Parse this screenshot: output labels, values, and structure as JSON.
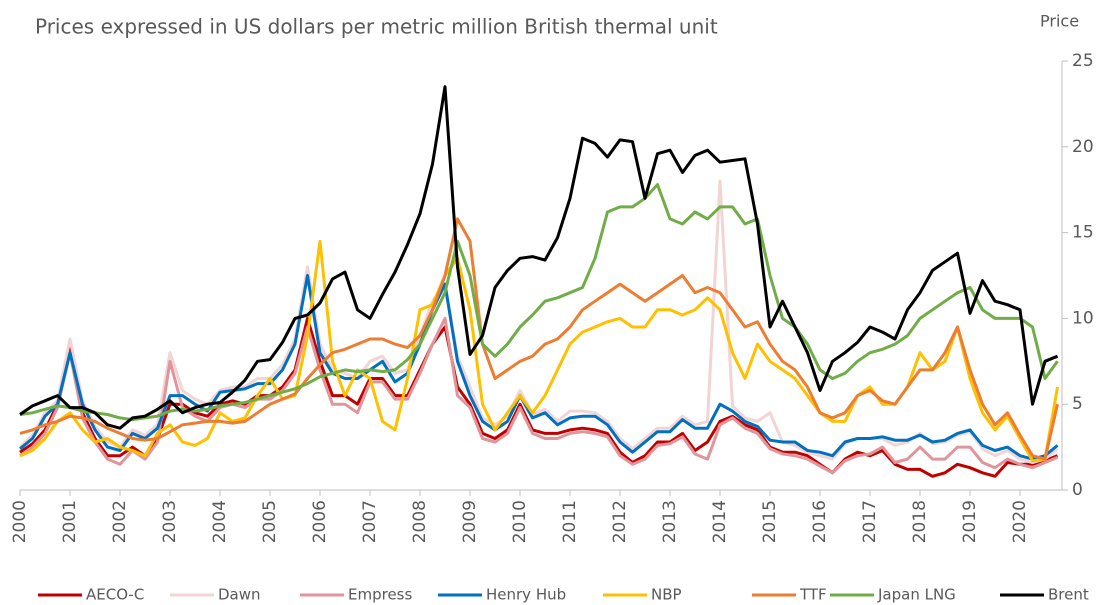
{
  "chart_data": {
    "type": "line",
    "title": "Prices expressed in US dollars per metric million British thermal unit",
    "y_axis_label": "Price",
    "xlim": [
      2000,
      2020.84
    ],
    "xticks": [
      2000,
      2001,
      2002,
      2003,
      2004,
      2005,
      2006,
      2007,
      2008,
      2009,
      2010,
      2011,
      2012,
      2013,
      2014,
      2015,
      2016,
      2017,
      2018,
      2019,
      2020
    ],
    "ylim": [
      0,
      25
    ],
    "yticks": [
      0,
      5,
      10,
      15,
      20,
      25
    ],
    "x": [
      2000,
      2000.25,
      2000.5,
      2000.75,
      2001,
      2001.25,
      2001.5,
      2001.75,
      2002,
      2002.25,
      2002.5,
      2002.75,
      2003,
      2003.25,
      2003.5,
      2003.75,
      2004,
      2004.25,
      2004.5,
      2004.75,
      2005,
      2005.25,
      2005.5,
      2005.75,
      2006,
      2006.25,
      2006.5,
      2006.75,
      2007,
      2007.25,
      2007.5,
      2007.75,
      2008,
      2008.25,
      2008.5,
      2008.75,
      2009,
      2009.25,
      2009.5,
      2009.75,
      2010,
      2010.25,
      2010.5,
      2010.75,
      2011,
      2011.25,
      2011.5,
      2011.75,
      2012,
      2012.25,
      2012.5,
      2012.75,
      2013,
      2013.25,
      2013.5,
      2013.75,
      2014,
      2014.25,
      2014.5,
      2014.75,
      2015,
      2015.25,
      2015.5,
      2015.75,
      2016,
      2016.25,
      2016.5,
      2016.75,
      2017,
      2017.25,
      2017.5,
      2017.75,
      2018,
      2018.25,
      2018.5,
      2018.75,
      2019,
      2019.25,
      2019.5,
      2019.75,
      2020,
      2020.25,
      2020.5,
      2020.75
    ],
    "series": [
      {
        "name": "AECO-C",
        "color": "#c00000",
        "values": [
          2.2,
          2.7,
          3.5,
          5.0,
          8.5,
          4.5,
          3.0,
          2.0,
          2.0,
          2.5,
          2.0,
          3.0,
          5.0,
          5.0,
          4.5,
          4.3,
          5.0,
          5.2,
          5.0,
          5.5,
          5.5,
          6.0,
          7.0,
          10.0,
          7.5,
          5.5,
          5.5,
          5.0,
          6.5,
          6.5,
          5.5,
          5.5,
          7.0,
          8.5,
          9.5,
          6.0,
          5.0,
          3.3,
          3.0,
          3.5,
          5.0,
          3.5,
          3.3,
          3.3,
          3.5,
          3.6,
          3.5,
          3.3,
          2.2,
          1.6,
          2.0,
          2.8,
          2.8,
          3.3,
          2.3,
          2.8,
          4.0,
          4.3,
          3.8,
          3.5,
          2.5,
          2.2,
          2.2,
          2.0,
          1.5,
          1.0,
          1.8,
          2.2,
          2.0,
          2.3,
          1.5,
          1.2,
          1.2,
          0.8,
          1.0,
          1.5,
          1.3,
          1.0,
          0.8,
          1.6,
          1.5,
          1.5,
          1.7,
          2.0
        ]
      },
      {
        "name": "Dawn",
        "color": "#f2d4d4",
        "values": [
          2.5,
          3.2,
          4.5,
          5.2,
          8.8,
          5.2,
          3.7,
          2.8,
          2.5,
          3.5,
          3.2,
          3.8,
          8.0,
          5.8,
          5.3,
          5.0,
          5.8,
          6.0,
          6.0,
          6.5,
          6.5,
          7.3,
          8.8,
          13.0,
          8.5,
          7.0,
          6.8,
          6.5,
          7.5,
          7.8,
          6.8,
          7.0,
          9.0,
          11.0,
          12.0,
          7.8,
          6.0,
          4.2,
          3.8,
          4.3,
          5.8,
          4.4,
          4.7,
          4.0,
          4.6,
          4.6,
          4.5,
          4.0,
          3.0,
          2.4,
          3.0,
          3.6,
          3.6,
          4.3,
          3.8,
          4.0,
          18.0,
          4.9,
          4.2,
          4.0,
          4.5,
          2.8,
          2.6,
          2.2,
          2.0,
          1.8,
          2.7,
          3.0,
          3.0,
          3.0,
          2.6,
          2.8,
          3.3,
          2.7,
          2.8,
          3.2,
          3.4,
          2.4,
          2.0,
          2.3,
          1.8,
          1.6,
          1.8,
          2.4
        ]
      },
      {
        "name": "Empress",
        "color": "#e0959a",
        "values": [
          2.0,
          2.5,
          3.3,
          4.8,
          8.0,
          4.2,
          2.8,
          1.8,
          1.5,
          2.3,
          1.8,
          2.8,
          7.5,
          4.8,
          4.3,
          4.0,
          4.8,
          5.0,
          4.8,
          5.3,
          5.3,
          5.8,
          6.8,
          9.5,
          7.0,
          5.0,
          5.0,
          4.5,
          6.3,
          6.3,
          5.3,
          5.3,
          6.8,
          8.5,
          10.0,
          5.5,
          4.8,
          3.0,
          2.8,
          3.3,
          4.8,
          3.3,
          3.0,
          3.0,
          3.3,
          3.4,
          3.3,
          3.1,
          2.0,
          1.5,
          1.8,
          2.6,
          2.7,
          3.1,
          2.1,
          1.8,
          3.8,
          4.2,
          3.6,
          3.3,
          2.4,
          2.1,
          2.0,
          1.8,
          1.4,
          1.0,
          1.7,
          2.0,
          2.1,
          2.5,
          1.6,
          1.8,
          2.5,
          1.8,
          1.8,
          2.5,
          2.5,
          1.6,
          1.3,
          1.8,
          1.5,
          1.3,
          1.6,
          1.9
        ]
      },
      {
        "name": "Henry Hub",
        "color": "#0070c0",
        "values": [
          2.4,
          3.0,
          4.3,
          5.0,
          8.0,
          5.0,
          3.5,
          2.5,
          2.3,
          3.3,
          3.0,
          3.6,
          5.5,
          5.5,
          5.0,
          4.6,
          5.7,
          5.8,
          5.9,
          6.2,
          6.2,
          7.0,
          8.5,
          12.5,
          8.0,
          6.8,
          6.5,
          6.5,
          7.0,
          7.5,
          6.3,
          6.8,
          8.5,
          10.5,
          12.0,
          7.5,
          5.5,
          4.0,
          3.5,
          4.0,
          5.5,
          4.2,
          4.5,
          3.8,
          4.2,
          4.3,
          4.3,
          3.8,
          2.8,
          2.2,
          2.8,
          3.4,
          3.4,
          4.1,
          3.6,
          3.6,
          5.0,
          4.6,
          4.0,
          3.7,
          2.9,
          2.8,
          2.8,
          2.3,
          2.2,
          2.0,
          2.8,
          3.0,
          3.0,
          3.1,
          2.9,
          2.9,
          3.2,
          2.8,
          2.9,
          3.3,
          3.5,
          2.6,
          2.3,
          2.5,
          2.0,
          1.8,
          2.0,
          2.6
        ]
      },
      {
        "name": "NBP",
        "color": "#ffc000",
        "values": [
          2.0,
          2.3,
          3.0,
          4.0,
          4.5,
          3.5,
          2.8,
          3.0,
          2.5,
          2.3,
          2.0,
          3.3,
          3.8,
          2.8,
          2.6,
          3.0,
          4.5,
          4.0,
          4.2,
          5.5,
          6.5,
          5.3,
          5.5,
          9.0,
          14.5,
          7.5,
          5.5,
          7.0,
          6.5,
          4.0,
          3.5,
          6.5,
          10.5,
          10.8,
          12.5,
          13.5,
          10.5,
          5.0,
          3.5,
          4.5,
          5.5,
          4.5,
          5.5,
          7.0,
          8.5,
          9.2,
          9.5,
          9.8,
          10.0,
          9.5,
          9.5,
          10.5,
          10.5,
          10.2,
          10.5,
          11.2,
          10.5,
          8.0,
          6.5,
          8.5,
          7.5,
          7.0,
          6.5,
          5.5,
          4.5,
          4.0,
          4.0,
          5.5,
          6.0,
          5.0,
          5.0,
          6.0,
          8.0,
          7.0,
          7.5,
          9.5,
          6.5,
          4.5,
          3.5,
          4.3,
          3.0,
          1.7,
          1.8,
          6.0
        ]
      },
      {
        "name": "TTF",
        "color": "#ed7d31",
        "values": [
          3.3,
          3.5,
          3.8,
          4.0,
          4.3,
          4.2,
          4.0,
          3.6,
          3.3,
          3.0,
          2.9,
          3.0,
          3.4,
          3.8,
          3.9,
          4.0,
          4.0,
          3.9,
          4.0,
          4.5,
          5.0,
          5.3,
          5.6,
          6.5,
          7.3,
          8.0,
          8.2,
          8.5,
          8.8,
          8.8,
          8.5,
          8.3,
          9.0,
          10.5,
          12.5,
          15.8,
          14.5,
          8.5,
          6.5,
          7.0,
          7.5,
          7.8,
          8.5,
          8.8,
          9.5,
          10.5,
          11.0,
          11.5,
          12.0,
          11.5,
          11.0,
          11.5,
          12.0,
          12.5,
          11.5,
          11.8,
          11.5,
          10.5,
          9.5,
          9.8,
          8.5,
          7.5,
          7.0,
          6.0,
          4.5,
          4.2,
          4.5,
          5.5,
          5.8,
          5.2,
          5.0,
          6.0,
          7.0,
          7.0,
          8.0,
          9.5,
          7.0,
          5.0,
          3.8,
          4.5,
          3.2,
          2.0,
          1.8,
          5.0
        ]
      },
      {
        "name": "Japan LNG",
        "color": "#70ad47",
        "values": [
          4.4,
          4.5,
          4.7,
          4.9,
          4.8,
          4.6,
          4.5,
          4.4,
          4.2,
          4.1,
          4.2,
          4.3,
          4.6,
          4.7,
          4.6,
          4.7,
          4.9,
          5.0,
          5.1,
          5.3,
          5.5,
          5.7,
          5.9,
          6.2,
          6.6,
          6.8,
          7.0,
          6.9,
          7.0,
          6.9,
          7.0,
          7.6,
          8.5,
          10.0,
          11.5,
          14.5,
          12.5,
          8.5,
          7.8,
          8.5,
          9.5,
          10.2,
          11.0,
          11.2,
          11.5,
          11.8,
          13.5,
          16.2,
          16.5,
          16.5,
          17.0,
          17.8,
          15.8,
          15.5,
          16.2,
          15.8,
          16.5,
          16.5,
          15.5,
          15.8,
          12.5,
          10.0,
          9.5,
          8.5,
          7.0,
          6.5,
          6.8,
          7.5,
          8.0,
          8.2,
          8.5,
          9.0,
          10.0,
          10.5,
          11.0,
          11.5,
          11.8,
          10.5,
          10.0,
          10.0,
          10.0,
          9.5,
          6.5,
          7.5
        ]
      },
      {
        "name": "Brent",
        "color": "#000000",
        "values": [
          4.4,
          4.9,
          5.2,
          5.5,
          4.8,
          4.8,
          4.5,
          3.8,
          3.6,
          4.2,
          4.3,
          4.7,
          5.2,
          4.5,
          4.8,
          5.0,
          5.1,
          5.7,
          6.4,
          7.5,
          7.6,
          8.6,
          10.0,
          10.2,
          10.9,
          12.3,
          12.7,
          10.5,
          10.0,
          11.4,
          12.7,
          14.3,
          16.1,
          19.0,
          23.5,
          13.0,
          7.9,
          9.0,
          11.8,
          12.8,
          13.5,
          13.6,
          13.4,
          14.7,
          17.0,
          20.5,
          20.2,
          19.4,
          20.4,
          20.3,
          17.0,
          19.6,
          19.8,
          18.5,
          19.5,
          19.8,
          19.1,
          19.2,
          19.3,
          15.5,
          9.5,
          11.0,
          9.5,
          8.0,
          5.8,
          7.5,
          8.0,
          8.6,
          9.5,
          9.2,
          8.8,
          10.5,
          11.5,
          12.8,
          13.3,
          13.8,
          10.3,
          12.2,
          11.0,
          10.8,
          10.5,
          5.0,
          7.5,
          7.8
        ]
      }
    ]
  }
}
